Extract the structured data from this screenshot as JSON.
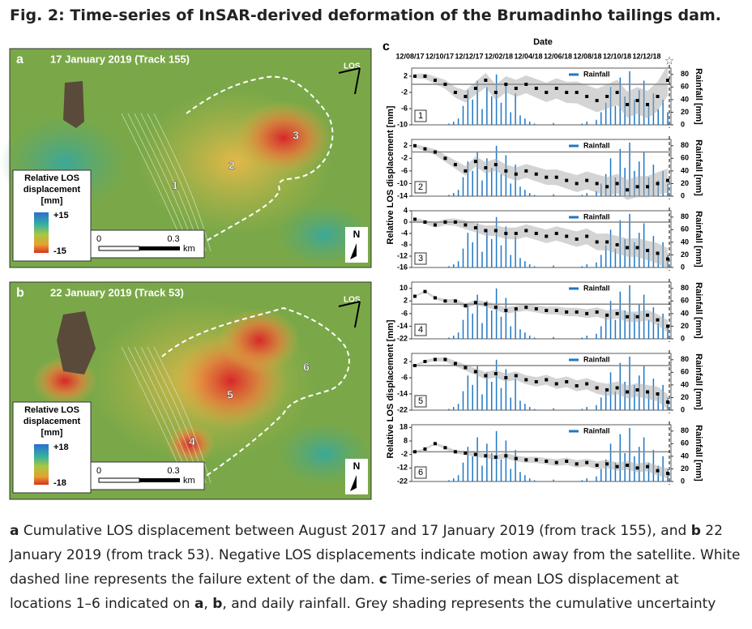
{
  "header": {
    "title": "Fig. 2: Time-series of InSAR-derived deformation of the Brumadinho tailings dam."
  },
  "panels": [
    {
      "label": "a",
      "title": "17 January 2019 (Track 155)",
      "legend_title": [
        "Relative LOS",
        "displacement",
        "[mm]"
      ],
      "legend_max": "+15",
      "legend_min": "-15",
      "scale_labels": [
        "0",
        "0.3",
        "km"
      ],
      "los": "LOS",
      "north": "N",
      "sites": [
        "1",
        "2",
        "3"
      ]
    },
    {
      "label": "b",
      "title": "22 January 2019 (Track 53)",
      "legend_title": [
        "Relative LOS",
        "displacement",
        "[mm]"
      ],
      "legend_max": "+18",
      "legend_min": "-18",
      "scale_labels": [
        "0",
        "0.3",
        "km"
      ],
      "los": "LOS",
      "north": "N",
      "sites": [
        "4",
        "5",
        "6"
      ]
    }
  ],
  "chart_c": {
    "type": "scatter",
    "label": "c",
    "x_label": "Date",
    "dates": [
      "12/08/17",
      "12/10/17",
      "12/12/17",
      "12/02/18",
      "12/04/18",
      "12/06/18",
      "12/08/18",
      "12/10/18",
      "12/12/18"
    ],
    "y_label": "Relative LOS displacement [mm]",
    "y2_label": "Rainfall [mm]",
    "legend": "Rainfall",
    "rain_color": "#1f77c4",
    "y2lim": [
      0,
      90
    ],
    "y2ticks": [
      0,
      20,
      40,
      60,
      80
    ],
    "uncertainty": [
      0.5,
      0.7,
      0.9,
      1.1,
      1.3,
      1.5,
      1.6,
      1.8,
      1.9,
      2,
      2.1,
      2.2,
      2.3,
      2.4,
      2.5,
      2.6,
      2.7,
      2.8,
      2.9,
      3,
      3.1,
      3.2,
      3.3,
      3.4,
      3.6,
      3.8
    ],
    "rainfall": [
      0,
      2,
      5,
      10,
      30,
      55,
      40,
      70,
      25,
      60,
      45,
      80,
      35,
      65,
      20,
      50,
      15,
      10,
      5,
      2,
      0,
      0,
      0,
      3,
      0,
      0,
      0,
      0,
      0,
      2,
      5,
      0,
      8,
      20,
      35,
      60,
      30,
      75,
      45,
      85,
      40,
      55,
      70,
      30,
      50,
      25,
      40,
      20
    ],
    "subplots": [
      {
        "label": "1",
        "ylim": [
          -10,
          4
        ],
        "yticks": [
          2,
          -2,
          -6,
          -10
        ],
        "values": [
          2,
          2,
          1,
          0,
          -2,
          -3,
          -1,
          1,
          -2,
          0,
          -1,
          0,
          -1,
          -2,
          -1,
          -2,
          -2,
          -3,
          -4,
          -3,
          -2,
          -5,
          -4,
          -5,
          -3,
          1
        ]
      },
      {
        "label": "2",
        "ylim": [
          -14,
          4
        ],
        "yticks": [
          2,
          -2,
          -6,
          -10,
          -14
        ],
        "values": [
          2,
          1,
          0,
          -2,
          -4,
          -6,
          -3,
          -5,
          -4,
          -6,
          -7,
          -6,
          -7,
          -8,
          -8,
          -9,
          -10,
          -9,
          -10,
          -11,
          -10,
          -12,
          -11,
          -11,
          -10,
          -9
        ]
      },
      {
        "label": "3",
        "ylim": [
          -16,
          4
        ],
        "yticks": [
          4,
          0,
          -4,
          -8,
          -12,
          -16
        ],
        "values": [
          1,
          0,
          -1,
          0,
          0,
          -1,
          -2,
          -3,
          -3,
          -4,
          -4,
          -3,
          -4,
          -5,
          -4,
          -5,
          -6,
          -5,
          -7,
          -7,
          -8,
          -9,
          -9,
          -10,
          -11,
          -13
        ]
      },
      {
        "label": "4",
        "ylim": [
          -22,
          14
        ],
        "yticks": [
          10,
          2,
          -6,
          -14,
          -22
        ],
        "values": [
          5,
          8,
          4,
          2,
          2,
          -1,
          1,
          0,
          -2,
          -4,
          -3,
          -2,
          -3,
          -4,
          -4,
          -5,
          -5,
          -6,
          -5,
          -7,
          -6,
          -8,
          -8,
          -7,
          -10,
          -14
        ]
      },
      {
        "label": "5",
        "ylim": [
          -22,
          6
        ],
        "yticks": [
          2,
          -6,
          -14,
          -22
        ],
        "values": [
          0,
          2,
          3,
          3,
          1,
          -1,
          -3,
          -5,
          -4,
          -6,
          -5,
          -7,
          -8,
          -7,
          -9,
          -8,
          -10,
          -9,
          -11,
          -12,
          -11,
          -13,
          -12,
          -13,
          -14,
          -18
        ]
      },
      {
        "label": "6",
        "ylim": [
          -22,
          20
        ],
        "yticks": [
          18,
          8,
          -2,
          -12,
          -22
        ],
        "values": [
          0,
          2,
          6,
          3,
          0,
          -1,
          -2,
          -3,
          -4,
          -3,
          -5,
          -6,
          -6,
          -7,
          -8,
          -7,
          -9,
          -8,
          -10,
          -9,
          -11,
          -10,
          -12,
          -11,
          -14,
          -16
        ]
      }
    ]
  },
  "caption": [
    {
      "text": "a",
      "bold": true
    },
    {
      "text": " Cumulative LOS displacement between August 2017 and 17 January 2019 (from track 155), and ",
      "bold": false
    },
    {
      "text": "b",
      "bold": true
    },
    {
      "text": " 22 January 2019 (from track 53). Negative LOS displacements indicate motion away from the satellite. White dashed line represents the failure extent of the dam. ",
      "bold": false
    },
    {
      "text": "c",
      "bold": true
    },
    {
      "text": " Time-series of mean LOS displacement at locations 1–6 indicated on ",
      "bold": false
    },
    {
      "text": "a",
      "bold": true
    },
    {
      "text": ", ",
      "bold": false
    },
    {
      "text": "b",
      "bold": true
    },
    {
      "text": ", and daily rainfall. Grey shading represents the cumulative uncertainty",
      "bold": false
    }
  ]
}
